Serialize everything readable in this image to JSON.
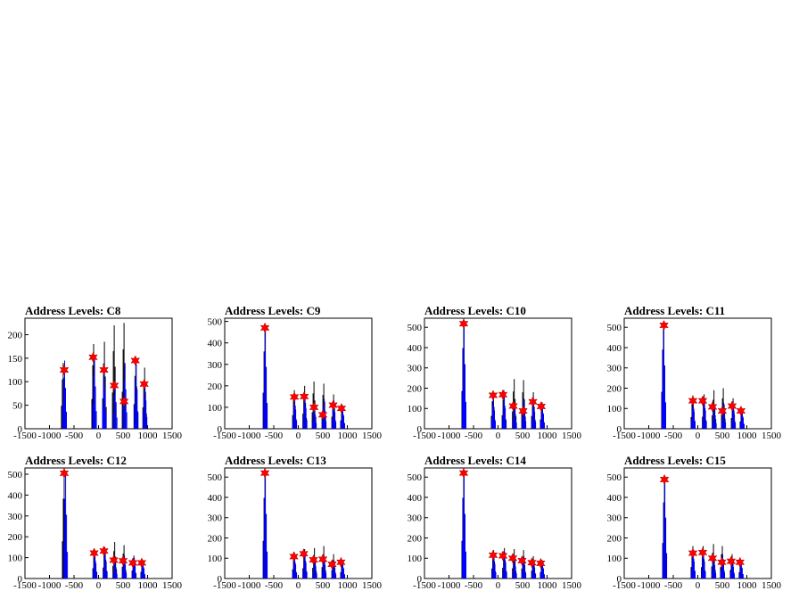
{
  "chart_data": [
    {
      "type": "histogram",
      "title": "Address Levels: C8",
      "xlim": [
        -1500,
        1500
      ],
      "ylim": [
        0,
        235
      ],
      "xticks": [
        -1500,
        -1000,
        -500,
        0,
        500,
        1000,
        1500
      ],
      "yticks": [
        0,
        50,
        100,
        150,
        200
      ],
      "series": [
        {
          "color": "#000000",
          "peaks": [
            [
              -720,
              140
            ],
            [
              -100,
              180
            ],
            [
              120,
              185
            ],
            [
              320,
              220
            ],
            [
              520,
              225
            ],
            [
              760,
              150
            ],
            [
              940,
              130
            ]
          ]
        },
        {
          "color": "#0000ff",
          "peaks": [
            [
              -700,
              145
            ],
            [
              -90,
              150
            ],
            [
              110,
              130
            ],
            [
              330,
              95
            ],
            [
              530,
              140
            ],
            [
              760,
              140
            ],
            [
              940,
              100
            ]
          ]
        }
      ],
      "markers": [
        [
          -700,
          125
        ],
        [
          -110,
          152
        ],
        [
          110,
          125
        ],
        [
          320,
          92
        ],
        [
          520,
          58
        ],
        [
          750,
          145
        ],
        [
          930,
          95
        ]
      ]
    },
    {
      "type": "histogram",
      "title": "Address Levels: C9",
      "xlim": [
        -1500,
        1500
      ],
      "ylim": [
        0,
        515
      ],
      "xticks": [
        -1500,
        -1000,
        -500,
        0,
        500,
        1000,
        1500
      ],
      "yticks": [
        0,
        100,
        200,
        300,
        400,
        500
      ],
      "series": [
        {
          "color": "#000000",
          "peaks": [
            [
              -680,
              480
            ],
            [
              -80,
              180
            ],
            [
              130,
              200
            ],
            [
              320,
              220
            ],
            [
              520,
              210
            ],
            [
              720,
              160
            ],
            [
              900,
              110
            ]
          ]
        },
        {
          "color": "#0000ff",
          "peaks": [
            [
              -680,
              480
            ],
            [
              -80,
              150
            ],
            [
              130,
              160
            ],
            [
              320,
              110
            ],
            [
              520,
              140
            ],
            [
              720,
              130
            ],
            [
              900,
              100
            ]
          ]
        }
      ],
      "markers": [
        [
          -680,
          470
        ],
        [
          -80,
          148
        ],
        [
          120,
          150
        ],
        [
          320,
          100
        ],
        [
          500,
          65
        ],
        [
          710,
          110
        ],
        [
          880,
          95
        ]
      ]
    },
    {
      "type": "histogram",
      "title": "Address Levels: C10",
      "xlim": [
        -1500,
        1500
      ],
      "ylim": [
        0,
        545
      ],
      "xticks": [
        -1500,
        -1000,
        -500,
        0,
        500,
        1000,
        1500
      ],
      "yticks": [
        0,
        100,
        200,
        300,
        400,
        500
      ],
      "series": [
        {
          "color": "#000000",
          "peaks": [
            [
              -700,
              530
            ],
            [
              -100,
              180
            ],
            [
              120,
              190
            ],
            [
              330,
              245
            ],
            [
              520,
              240
            ],
            [
              720,
              180
            ],
            [
              900,
              130
            ]
          ]
        },
        {
          "color": "#0000ff",
          "peaks": [
            [
              -700,
              530
            ],
            [
              -100,
              150
            ],
            [
              120,
              170
            ],
            [
              330,
              120
            ],
            [
              520,
              150
            ],
            [
              720,
              140
            ],
            [
              900,
              120
            ]
          ]
        }
      ],
      "markers": [
        [
          -700,
          518
        ],
        [
          -100,
          165
        ],
        [
          100,
          168
        ],
        [
          310,
          112
        ],
        [
          510,
          88
        ],
        [
          710,
          133
        ],
        [
          880,
          110
        ]
      ]
    },
    {
      "type": "histogram",
      "title": "Address Levels: C11",
      "xlim": [
        -1500,
        1500
      ],
      "ylim": [
        0,
        545
      ],
      "xticks": [
        -1500,
        -1000,
        -500,
        0,
        500,
        1000,
        1500
      ],
      "yticks": [
        0,
        100,
        200,
        300,
        400,
        500
      ],
      "series": [
        {
          "color": "#000000",
          "peaks": [
            [
              -700,
              520
            ],
            [
              -100,
              165
            ],
            [
              130,
              170
            ],
            [
              330,
              190
            ],
            [
              520,
              200
            ],
            [
              720,
              150
            ],
            [
              900,
              100
            ]
          ]
        },
        {
          "color": "#0000ff",
          "peaks": [
            [
              -700,
              520
            ],
            [
              -100,
              140
            ],
            [
              130,
              150
            ],
            [
              330,
              110
            ],
            [
              520,
              130
            ],
            [
              720,
              120
            ],
            [
              900,
              90
            ]
          ]
        }
      ],
      "markers": [
        [
          -690,
          510
        ],
        [
          -100,
          138
        ],
        [
          100,
          138
        ],
        [
          300,
          108
        ],
        [
          500,
          88
        ],
        [
          700,
          112
        ],
        [
          880,
          88
        ]
      ]
    },
    {
      "type": "histogram",
      "title": "Address Levels: C12",
      "xlim": [
        -1500,
        1500
      ],
      "ylim": [
        0,
        530
      ],
      "xticks": [
        -1500,
        -1000,
        -500,
        0,
        500,
        1000,
        1500
      ],
      "yticks": [
        0,
        100,
        200,
        300,
        400,
        500
      ],
      "series": [
        {
          "color": "#000000",
          "peaks": [
            [
              -700,
              510
            ],
            [
              -80,
              140
            ],
            [
              130,
              150
            ],
            [
              330,
              175
            ],
            [
              520,
              160
            ],
            [
              720,
              110
            ],
            [
              900,
              90
            ]
          ]
        },
        {
          "color": "#0000ff",
          "peaks": [
            [
              -680,
              510
            ],
            [
              -80,
              120
            ],
            [
              130,
              135
            ],
            [
              330,
              90
            ],
            [
              520,
              110
            ],
            [
              720,
              100
            ],
            [
              900,
              80
            ]
          ]
        }
      ],
      "markers": [
        [
          -700,
          505
        ],
        [
          -90,
          122
        ],
        [
          110,
          132
        ],
        [
          310,
          88
        ],
        [
          500,
          85
        ],
        [
          700,
          75
        ],
        [
          880,
          75
        ]
      ]
    },
    {
      "type": "histogram",
      "title": "Address Levels: C13",
      "xlim": [
        -1500,
        1500
      ],
      "ylim": [
        0,
        545
      ],
      "xticks": [
        -1500,
        -1000,
        -500,
        0,
        500,
        1000,
        1500
      ],
      "yticks": [
        0,
        100,
        200,
        300,
        400,
        500
      ],
      "series": [
        {
          "color": "#000000",
          "peaks": [
            [
              -680,
              530
            ],
            [
              -80,
              130
            ],
            [
              130,
              145
            ],
            [
              330,
              150
            ],
            [
              520,
              160
            ],
            [
              720,
              120
            ],
            [
              900,
              90
            ]
          ]
        },
        {
          "color": "#0000ff",
          "peaks": [
            [
              -680,
              530
            ],
            [
              -80,
              115
            ],
            [
              130,
              130
            ],
            [
              330,
              100
            ],
            [
              520,
              110
            ],
            [
              720,
              90
            ],
            [
              900,
              80
            ]
          ]
        }
      ],
      "markers": [
        [
          -680,
          520
        ],
        [
          -90,
          108
        ],
        [
          110,
          122
        ],
        [
          310,
          92
        ],
        [
          500,
          95
        ],
        [
          690,
          70
        ],
        [
          870,
          80
        ]
      ]
    },
    {
      "type": "histogram",
      "title": "Address Levels: C14",
      "xlim": [
        -1500,
        1500
      ],
      "ylim": [
        0,
        545
      ],
      "xticks": [
        -1500,
        -1000,
        -500,
        0,
        500,
        1000,
        1500
      ],
      "yticks": [
        0,
        100,
        200,
        300,
        400,
        500
      ],
      "series": [
        {
          "color": "#000000",
          "peaks": [
            [
              -700,
              530
            ],
            [
              -90,
              140
            ],
            [
              130,
              150
            ],
            [
              330,
              145
            ],
            [
              520,
              140
            ],
            [
              720,
              110
            ],
            [
              900,
              90
            ]
          ]
        },
        {
          "color": "#0000ff",
          "peaks": [
            [
              -700,
              530
            ],
            [
              -90,
              120
            ],
            [
              130,
              130
            ],
            [
              330,
              100
            ],
            [
              520,
              110
            ],
            [
              720,
              90
            ],
            [
              900,
              80
            ]
          ]
        }
      ],
      "markers": [
        [
          -700,
          520
        ],
        [
          -100,
          115
        ],
        [
          100,
          112
        ],
        [
          300,
          100
        ],
        [
          490,
          88
        ],
        [
          690,
          78
        ],
        [
          870,
          75
        ]
      ]
    },
    {
      "type": "histogram",
      "title": "Address Levels: C15",
      "xlim": [
        -1500,
        1500
      ],
      "ylim": [
        0,
        545
      ],
      "xticks": [
        -1500,
        -1000,
        -500,
        0,
        500,
        1000,
        1500
      ],
      "yticks": [
        0,
        100,
        200,
        300,
        400,
        500
      ],
      "series": [
        {
          "color": "#000000",
          "peaks": [
            [
              -680,
              500
            ],
            [
              -100,
              160
            ],
            [
              110,
              160
            ],
            [
              320,
              170
            ],
            [
              500,
              160
            ],
            [
              700,
              120
            ],
            [
              880,
              90
            ]
          ]
        },
        {
          "color": "#0000ff",
          "peaks": [
            [
              -680,
              500
            ],
            [
              -100,
              140
            ],
            [
              110,
              140
            ],
            [
              320,
              110
            ],
            [
              500,
              120
            ],
            [
              700,
              95
            ],
            [
              880,
              85
            ]
          ]
        }
      ],
      "markers": [
        [
          -680,
          488
        ],
        [
          -100,
          125
        ],
        [
          100,
          128
        ],
        [
          300,
          100
        ],
        [
          490,
          80
        ],
        [
          680,
          85
        ],
        [
          860,
          80
        ]
      ]
    }
  ]
}
